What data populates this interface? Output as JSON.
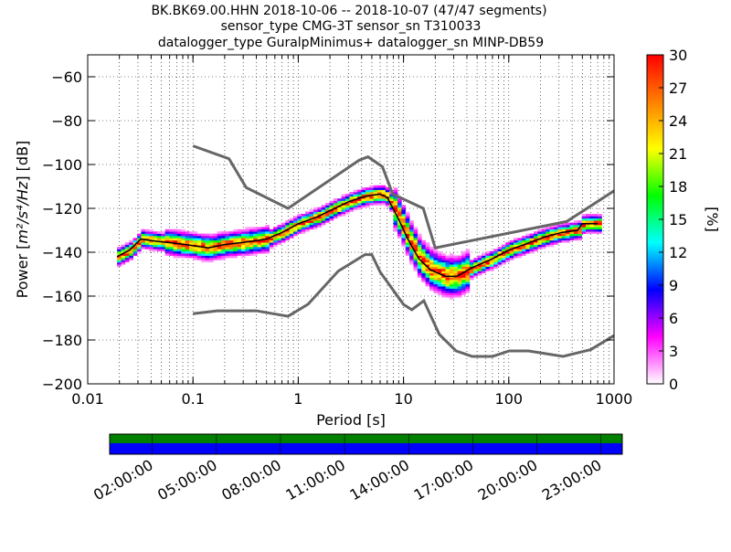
{
  "chart_data": {
    "type": "heatmap",
    "title_lines": [
      "BK.BK69.00.HHN   2018-10-06 -- 2018-10-07  (47/47 segments)",
      "sensor_type CMG-3T sensor_sn T310033",
      "datalogger_type GuralpMinimus+ datalogger_sn MINP-DB59"
    ],
    "xlabel": "Period [s]",
    "ylabel_prefix": "Power [",
    "ylabel_units": "m²/s⁴/Hz",
    "ylabel_suffix": "] [dB]",
    "xscale": "log",
    "xlim": [
      0.01,
      1000
    ],
    "ylim": [
      -200,
      -50
    ],
    "xticks": [
      {
        "v": 0.01,
        "label": "0.01"
      },
      {
        "v": 0.1,
        "label": "0.1"
      },
      {
        "v": 1,
        "label": "1"
      },
      {
        "v": 10,
        "label": "10"
      },
      {
        "v": 100,
        "label": "100"
      },
      {
        "v": 1000,
        "label": "1000"
      }
    ],
    "yticks": [
      {
        "v": -60,
        "label": "−60"
      },
      {
        "v": -80,
        "label": "−80"
      },
      {
        "v": -100,
        "label": "−100"
      },
      {
        "v": -120,
        "label": "−120"
      },
      {
        "v": -140,
        "label": "−140"
      },
      {
        "v": -160,
        "label": "−160"
      },
      {
        "v": -180,
        "label": "−180"
      },
      {
        "v": -200,
        "label": "−200"
      }
    ],
    "grid": true,
    "colorbar": {
      "label": "[%]",
      "min": 0,
      "max": 30,
      "ticks": [
        {
          "v": 0,
          "label": "0"
        },
        {
          "v": 3,
          "label": "3"
        },
        {
          "v": 6,
          "label": "6"
        },
        {
          "v": 9,
          "label": "9"
        },
        {
          "v": 12,
          "label": "12"
        },
        {
          "v": 15,
          "label": "15"
        },
        {
          "v": 18,
          "label": "18"
        },
        {
          "v": 21,
          "label": "21"
        },
        {
          "v": 24,
          "label": "24"
        },
        {
          "v": 27,
          "label": "27"
        },
        {
          "v": 30,
          "label": "30"
        }
      ],
      "colors": [
        "#ffffff",
        "#ff00ff",
        "#0000ff",
        "#00ffff",
        "#00ff00",
        "#ffff00",
        "#ff8000",
        "#ff0000"
      ]
    },
    "new_high_noise_model": [
      [
        0.1,
        -91.5
      ],
      [
        0.22,
        -97.4
      ],
      [
        0.32,
        -110.5
      ],
      [
        0.8,
        -120
      ],
      [
        3.8,
        -98
      ],
      [
        4.6,
        -96.5
      ],
      [
        6.3,
        -101
      ],
      [
        7.9,
        -113.5
      ],
      [
        15.4,
        -120
      ],
      [
        20,
        -138
      ],
      [
        354.8,
        -126
      ],
      [
        1000,
        -112
      ]
    ],
    "new_low_noise_model": [
      [
        0.1,
        -168
      ],
      [
        0.17,
        -166.7
      ],
      [
        0.4,
        -166.7
      ],
      [
        0.8,
        -169.2
      ],
      [
        1.24,
        -163.7
      ],
      [
        2.4,
        -148.6
      ],
      [
        4.3,
        -141.1
      ],
      [
        5,
        -141.1
      ],
      [
        6,
        -149
      ],
      [
        10,
        -163.8
      ],
      [
        12,
        -166.2
      ],
      [
        15.6,
        -162.1
      ],
      [
        21.9,
        -177.5
      ],
      [
        31.6,
        -185
      ],
      [
        45,
        -187.5
      ],
      [
        70,
        -187.5
      ],
      [
        101,
        -185
      ],
      [
        154,
        -185
      ],
      [
        328,
        -187.5
      ],
      [
        600,
        -184.4
      ],
      [
        1000,
        -178
      ]
    ],
    "mean_psd": [
      [
        0.019,
        -142
      ],
      [
        0.025,
        -139
      ],
      [
        0.032,
        -134
      ],
      [
        0.045,
        -135
      ],
      [
        0.07,
        -136
      ],
      [
        0.1,
        -137
      ],
      [
        0.14,
        -138
      ],
      [
        0.2,
        -136.5
      ],
      [
        0.3,
        -135.5
      ],
      [
        0.5,
        -134
      ],
      [
        0.7,
        -131
      ],
      [
        1,
        -127
      ],
      [
        1.5,
        -124
      ],
      [
        2,
        -121
      ],
      [
        3,
        -117
      ],
      [
        4,
        -115
      ],
      [
        5,
        -114
      ],
      [
        6,
        -113.5
      ],
      [
        7,
        -115
      ],
      [
        9,
        -125
      ],
      [
        11,
        -134
      ],
      [
        14,
        -143
      ],
      [
        18,
        -148
      ],
      [
        25,
        -151
      ],
      [
        32,
        -151
      ],
      [
        45,
        -147
      ],
      [
        70,
        -143
      ],
      [
        100,
        -139
      ],
      [
        150,
        -136
      ],
      [
        220,
        -133
      ],
      [
        320,
        -131
      ],
      [
        450,
        -130
      ],
      [
        500,
        -127
      ],
      [
        700,
        -127
      ]
    ],
    "time_axis": {
      "ticks": [
        {
          "frac": 0.0833,
          "label": "02:00:00"
        },
        {
          "frac": 0.2083,
          "label": "05:00:00"
        },
        {
          "frac": 0.3333,
          "label": "08:00:00"
        },
        {
          "frac": 0.4583,
          "label": "11:00:00"
        },
        {
          "frac": 0.5833,
          "label": "14:00:00"
        },
        {
          "frac": 0.7083,
          "label": "17:00:00"
        },
        {
          "frac": 0.8333,
          "label": "20:00:00"
        },
        {
          "frac": 0.9583,
          "label": "23:00:00"
        }
      ],
      "data_coverage_color": "#008000",
      "processed_coverage_color": "#0000ff"
    },
    "colors": {
      "noise_model": "#666666",
      "mean": "#000000"
    }
  }
}
